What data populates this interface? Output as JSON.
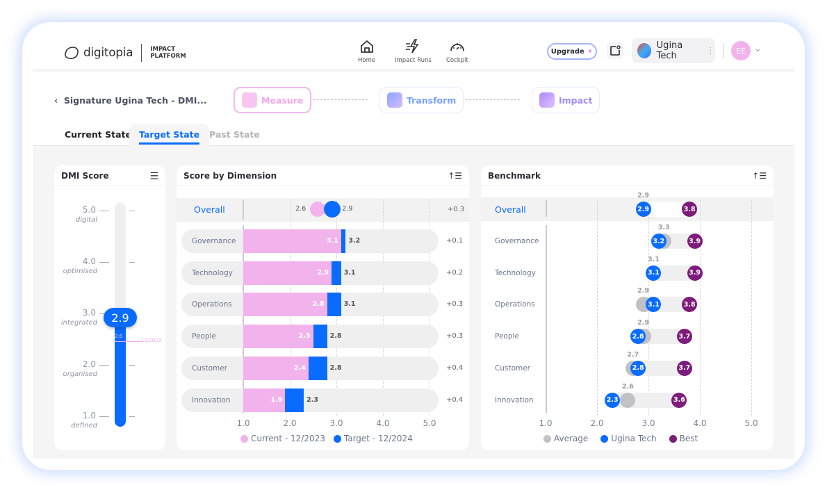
{
  "header": {
    "logo": "digitopia",
    "platform": "IMPACT PLATFORM",
    "nav": [
      {
        "label": "Home",
        "icon": "home-icon"
      },
      {
        "label": "Impact Runs",
        "icon": "lightning-icon"
      },
      {
        "label": "Cockpit",
        "icon": "gauge-icon"
      }
    ],
    "upgrade": "Upgrade",
    "org": "Ugina Tech",
    "avatar": "EE"
  },
  "breadcrumb": "Signature Ugina Tech - DMI...",
  "steps": [
    "Measure",
    "Transform",
    "Impact"
  ],
  "tabs": [
    "Current State",
    "Target State",
    "Past State"
  ],
  "active_tab": "Target State",
  "colors": {
    "accent": "#0a6cff",
    "current": "#f2b3ec",
    "best": "#7d1c7a",
    "average": "#c2c2c6"
  },
  "dmi": {
    "title": "DMI Score",
    "value": "2.9",
    "previous": "2.6",
    "previous_date": "12/2023",
    "value_num": 2.9,
    "levels": [
      {
        "v": "5.0",
        "name": "digital"
      },
      {
        "v": "4.0",
        "name": "optimised"
      },
      {
        "v": "3.0",
        "name": "integrated"
      },
      {
        "v": "2.0",
        "name": "organised"
      },
      {
        "v": "1.0",
        "name": "defined"
      }
    ]
  },
  "chart_data": [
    {
      "type": "bar",
      "title": "Score by Dimension",
      "xlim": [
        1,
        5
      ],
      "ticks": [
        "1.0",
        "2.0",
        "3.0",
        "4.0",
        "5.0"
      ],
      "overall": {
        "label": "Overall",
        "current": 2.6,
        "target": 2.9,
        "delta": "+0.3"
      },
      "categories": [
        "Governance",
        "Technology",
        "Operations",
        "People",
        "Customer",
        "Innovation"
      ],
      "series": [
        {
          "name": "Current - 12/2023",
          "values": [
            3.1,
            2.9,
            2.8,
            2.5,
            2.4,
            1.9
          ]
        },
        {
          "name": "Target - 12/2024",
          "values": [
            3.2,
            3.1,
            3.1,
            2.8,
            2.8,
            2.3
          ]
        }
      ],
      "deltas": [
        "+0.1",
        "+0.2",
        "+0.3",
        "+0.3",
        "+0.4",
        "+0.4"
      ]
    },
    {
      "type": "scatter",
      "title": "Benchmark",
      "xlim": [
        1,
        5
      ],
      "ticks": [
        "1.0",
        "2.0",
        "3.0",
        "4.0",
        "5.0"
      ],
      "overall": {
        "label": "Overall",
        "average": 2.9,
        "company": 2.9,
        "best": 3.8
      },
      "categories": [
        "Governance",
        "Technology",
        "Operations",
        "People",
        "Customer",
        "Innovation"
      ],
      "series": [
        {
          "name": "Average",
          "values": [
            3.3,
            3.1,
            2.9,
            2.9,
            2.7,
            2.6
          ]
        },
        {
          "name": "Ugina Tech",
          "values": [
            3.2,
            3.1,
            3.1,
            2.8,
            2.8,
            2.3
          ]
        },
        {
          "name": "Best",
          "values": [
            3.9,
            3.9,
            3.8,
            3.7,
            3.7,
            3.6
          ]
        }
      ]
    }
  ]
}
